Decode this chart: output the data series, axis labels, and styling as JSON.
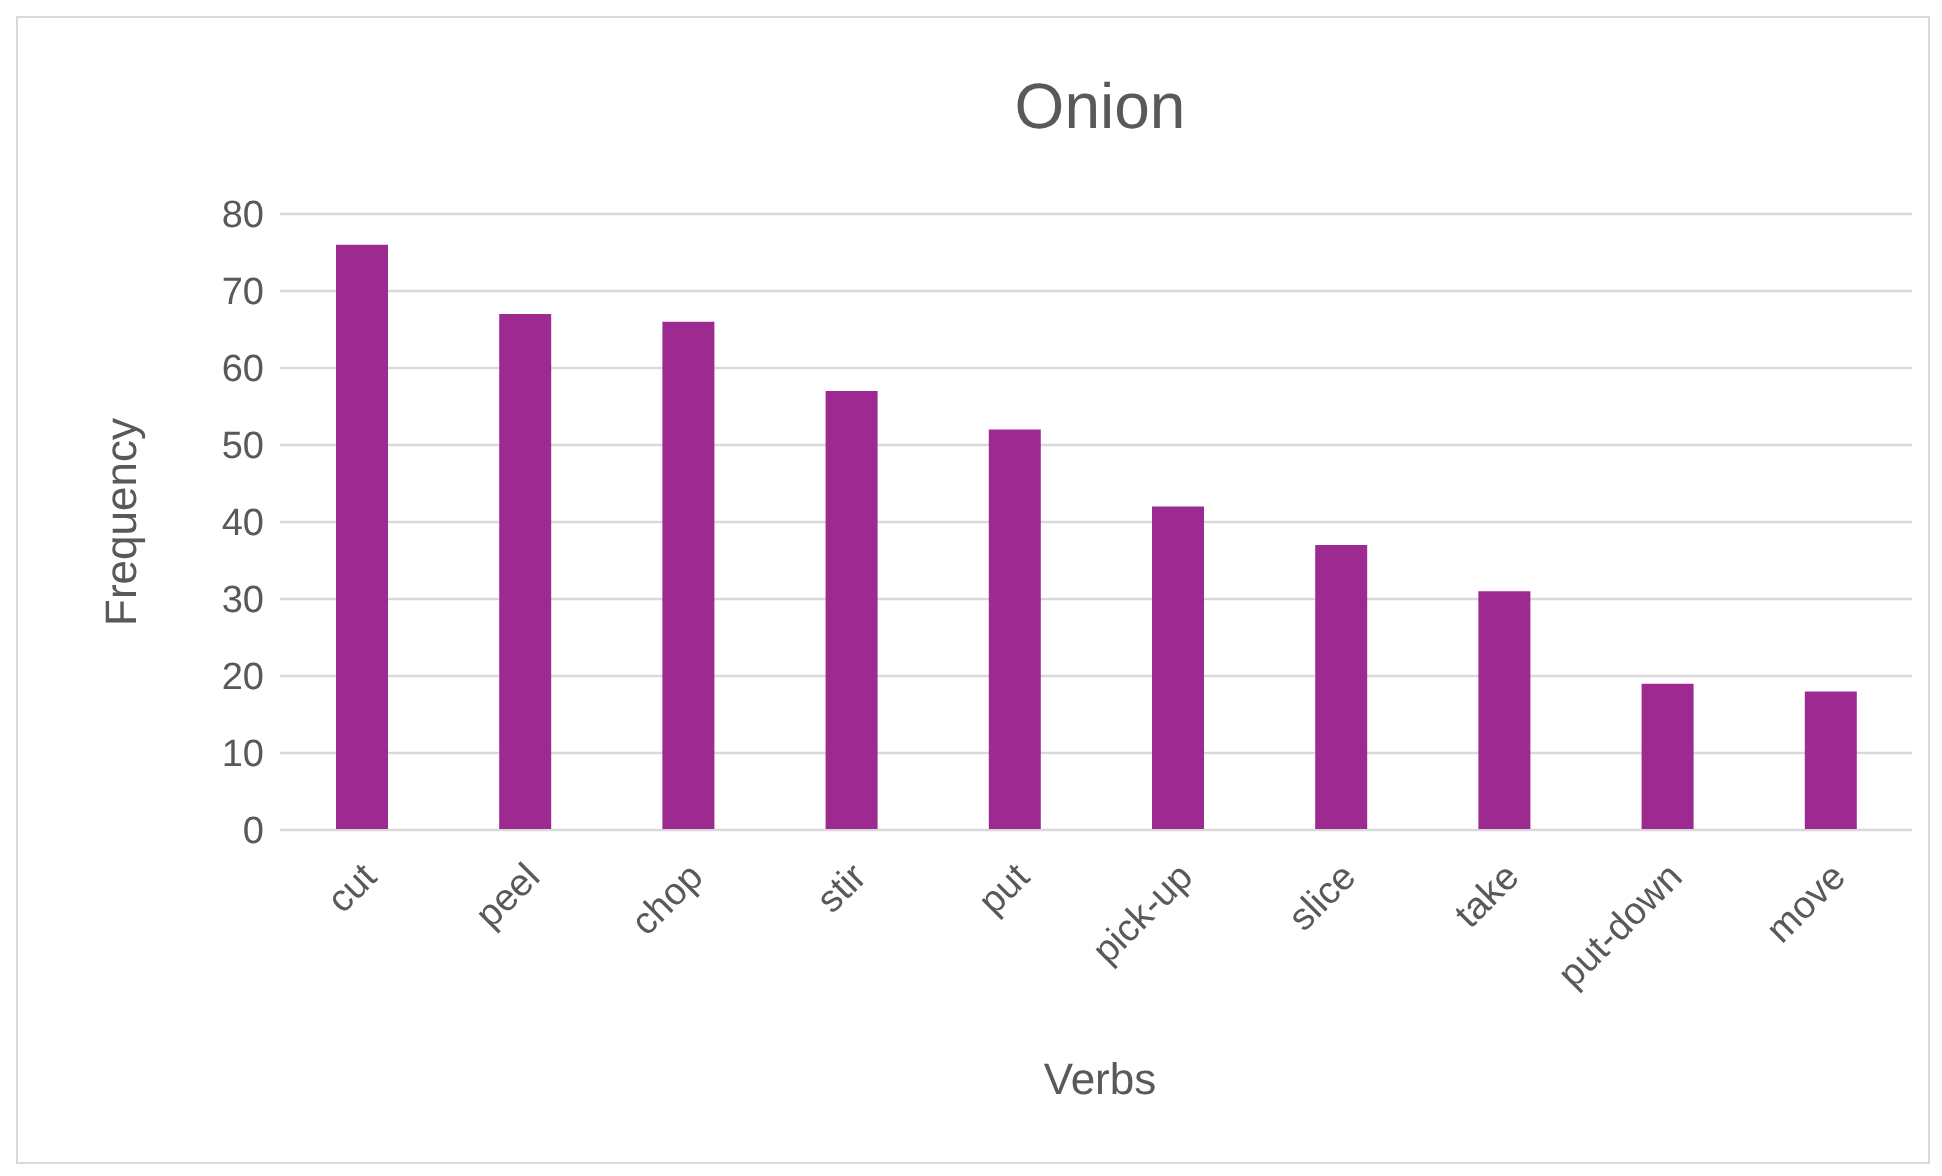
{
  "chart_data": {
    "type": "bar",
    "title": "Onion",
    "xlabel": "Verbs",
    "ylabel": "Frequency",
    "categories": [
      "cut",
      "peel",
      "chop",
      "stir",
      "put",
      "pick-up",
      "slice",
      "take",
      "put-down",
      "move"
    ],
    "values": [
      76,
      67,
      66,
      57,
      52,
      42,
      37,
      31,
      19,
      18
    ],
    "color": "#9c2a91",
    "ylim": [
      0,
      80
    ],
    "yticks": [
      0,
      10,
      20,
      30,
      40,
      50,
      60,
      70,
      80
    ],
    "grid": "y"
  }
}
